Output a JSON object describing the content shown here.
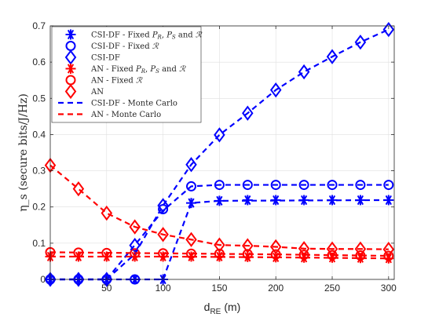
{
  "chart_data": {
    "type": "line",
    "xlabel": "d",
    "xlabel_sub": "RE",
    "xlabel_unit": "(m)",
    "ylabel": "η_s (secure bits/J/Hz)",
    "xlim": [
      0,
      305
    ],
    "ylim": [
      0,
      0.7
    ],
    "xticks": [
      50,
      100,
      150,
      200,
      250,
      300
    ],
    "yticks": [
      0,
      0.1,
      0.2,
      0.3,
      0.4,
      0.5,
      0.6,
      0.7
    ],
    "grid": true,
    "legend_position": "top-left",
    "colors": {
      "blue": "#0000ff",
      "red": "#ff0000"
    },
    "series": [
      {
        "name": "CSI-DF - Fixed P_R, P_S and R",
        "color": "#0000ff",
        "marker": "asterisk",
        "line": "none",
        "x": [
          0,
          25,
          50,
          75,
          100,
          125,
          150,
          175,
          200,
          225,
          250,
          275,
          300
        ],
        "y": [
          0.0,
          0.0,
          0.0,
          0.0,
          0.0,
          0.211,
          0.217,
          0.219,
          0.219,
          0.219,
          0.219,
          0.219,
          0.219
        ]
      },
      {
        "name": "CSI-DF - Fixed R",
        "color": "#0000ff",
        "marker": "circle",
        "line": "none",
        "x": [
          0,
          25,
          50,
          75,
          100,
          125,
          150,
          175,
          200,
          225,
          250,
          275,
          300
        ],
        "y": [
          0.0,
          0.0,
          0.0,
          0.0,
          0.194,
          0.257,
          0.261,
          0.261,
          0.261,
          0.261,
          0.261,
          0.261,
          0.261
        ]
      },
      {
        "name": "CSI-DF",
        "color": "#0000ff",
        "marker": "diamond",
        "line": "none",
        "x": [
          0,
          25,
          50,
          75,
          100,
          125,
          150,
          175,
          200,
          225,
          250,
          275,
          300
        ],
        "y": [
          0.0,
          0.0,
          0.0,
          0.094,
          0.204,
          0.317,
          0.399,
          0.459,
          0.523,
          0.573,
          0.615,
          0.655,
          0.69
        ]
      },
      {
        "name": "AN - Fixed P_R, P_S and R",
        "color": "#ff0000",
        "marker": "asterisk",
        "line": "none",
        "x": [
          0,
          25,
          50,
          75,
          100,
          125,
          150,
          175,
          200,
          225,
          250,
          275,
          300
        ],
        "y": [
          0.063,
          0.063,
          0.063,
          0.063,
          0.063,
          0.063,
          0.063,
          0.062,
          0.061,
          0.06,
          0.06,
          0.059,
          0.058
        ]
      },
      {
        "name": "AN - Fixed R",
        "color": "#ff0000",
        "marker": "circle",
        "line": "none",
        "x": [
          0,
          25,
          50,
          75,
          100,
          125,
          150,
          175,
          200,
          225,
          250,
          275,
          300
        ],
        "y": [
          0.075,
          0.074,
          0.073,
          0.072,
          0.072,
          0.071,
          0.071,
          0.07,
          0.069,
          0.068,
          0.067,
          0.066,
          0.065
        ]
      },
      {
        "name": "AN",
        "color": "#ff0000",
        "marker": "diamond",
        "line": "none",
        "x": [
          0,
          25,
          50,
          75,
          100,
          125,
          150,
          175,
          200,
          225,
          250,
          275,
          300
        ],
        "y": [
          0.315,
          0.25,
          0.183,
          0.145,
          0.124,
          0.11,
          0.095,
          0.093,
          0.09,
          0.085,
          0.084,
          0.084,
          0.083
        ]
      },
      {
        "name": "CSI-DF - Monte Carlo",
        "color": "#0000ff",
        "marker": "none",
        "line": "dashed",
        "segments": [
          {
            "x": [
              0,
              50,
              75,
              100,
              125,
              150,
              175,
              200,
              225,
              250,
              275,
              300
            ],
            "y": [
              0.0,
              0.0,
              0.07,
              0.204,
              0.317,
              0.399,
              0.459,
              0.523,
              0.573,
              0.615,
              0.655,
              0.69
            ]
          },
          {
            "x": [
              0,
              50,
              100,
              125,
              150,
              300
            ],
            "y": [
              0.0,
              0.0,
              0.19,
              0.257,
              0.261,
              0.261
            ]
          },
          {
            "x": [
              0,
              100,
              125,
              150,
              300
            ],
            "y": [
              0.0,
              0.0,
              0.211,
              0.217,
              0.219
            ]
          }
        ]
      },
      {
        "name": "AN - Monte Carlo",
        "color": "#ff0000",
        "marker": "none",
        "line": "dashed",
        "segments": [
          {
            "x": [
              0,
              25,
              50,
              75,
              100,
              125,
              150,
              175,
              200,
              225,
              250,
              275,
              300
            ],
            "y": [
              0.315,
              0.25,
              0.183,
              0.145,
              0.124,
              0.11,
              0.095,
              0.093,
              0.09,
              0.085,
              0.084,
              0.084,
              0.083
            ]
          },
          {
            "x": [
              0,
              100,
              200,
              300
            ],
            "y": [
              0.075,
              0.072,
              0.069,
              0.065
            ]
          },
          {
            "x": [
              0,
              100,
              200,
              300
            ],
            "y": [
              0.063,
              0.063,
              0.061,
              0.058
            ]
          }
        ]
      }
    ]
  }
}
